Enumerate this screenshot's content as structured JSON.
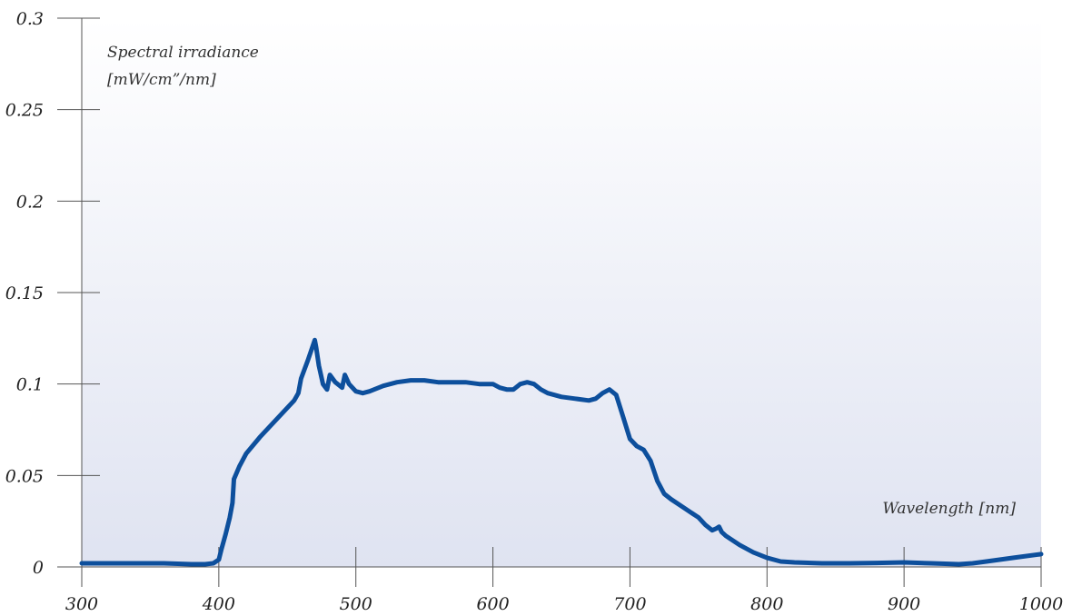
{
  "chart_data": {
    "type": "line",
    "title": "",
    "ylabel_line1": "Spectral irradiance",
    "ylabel_line2": "[mW/cm”/nm]",
    "xlabel": "Wavelength [nm]",
    "xlim": [
      300,
      1000
    ],
    "ylim": [
      0,
      0.3
    ],
    "x_ticks": [
      {
        "value": 300,
        "label": "300"
      },
      {
        "value": 400,
        "label": "400"
      },
      {
        "value": 500,
        "label": "500"
      },
      {
        "value": 600,
        "label": "600"
      },
      {
        "value": 700,
        "label": "700"
      },
      {
        "value": 800,
        "label": "800"
      },
      {
        "value": 900,
        "label": "900"
      },
      {
        "value": 1000,
        "label": "1000"
      }
    ],
    "y_ticks": [
      {
        "value": 0,
        "label": "0"
      },
      {
        "value": 0.05,
        "label": "0.05"
      },
      {
        "value": 0.1,
        "label": "0.1"
      },
      {
        "value": 0.15,
        "label": "0.15"
      },
      {
        "value": 0.2,
        "label": "0.2"
      },
      {
        "value": 0.25,
        "label": "0.25"
      },
      {
        "value": 0.3,
        "label": "0.3"
      }
    ],
    "grid": false,
    "colors": {
      "line": "#0d4f9c",
      "background_top": "#ffffff",
      "background_bottom": "#dfe3f1",
      "axis": "#555555"
    },
    "series": [
      {
        "x": [
          300,
          320,
          340,
          360,
          380,
          390,
          396,
          400,
          402,
          405,
          408,
          410,
          411,
          415,
          420,
          430,
          440,
          450,
          455,
          458,
          460,
          465,
          470,
          471,
          473,
          476,
          479,
          481,
          485,
          490,
          492,
          495,
          500,
          505,
          510,
          520,
          530,
          540,
          550,
          560,
          580,
          590,
          600,
          605,
          610,
          615,
          620,
          625,
          630,
          635,
          640,
          650,
          660,
          670,
          675,
          680,
          685,
          690,
          695,
          700,
          705,
          710,
          715,
          720,
          725,
          730,
          740,
          750,
          755,
          760,
          763,
          765,
          767,
          770,
          780,
          790,
          800,
          810,
          820,
          840,
          860,
          880,
          900,
          920,
          940,
          950,
          960,
          980,
          1000
        ],
        "y": [
          0.002,
          0.002,
          0.002,
          0.002,
          0.0015,
          0.0015,
          0.002,
          0.004,
          0.01,
          0.018,
          0.027,
          0.035,
          0.048,
          0.055,
          0.062,
          0.071,
          0.079,
          0.087,
          0.091,
          0.095,
          0.103,
          0.113,
          0.124,
          0.12,
          0.11,
          0.1,
          0.097,
          0.105,
          0.101,
          0.098,
          0.105,
          0.1,
          0.096,
          0.095,
          0.096,
          0.099,
          0.101,
          0.102,
          0.102,
          0.101,
          0.101,
          0.1,
          0.1,
          0.098,
          0.097,
          0.097,
          0.1,
          0.101,
          0.1,
          0.097,
          0.095,
          0.093,
          0.092,
          0.091,
          0.092,
          0.095,
          0.097,
          0.094,
          0.082,
          0.07,
          0.066,
          0.064,
          0.058,
          0.047,
          0.04,
          0.037,
          0.032,
          0.027,
          0.023,
          0.02,
          0.021,
          0.022,
          0.019,
          0.017,
          0.012,
          0.008,
          0.005,
          0.003,
          0.0025,
          0.002,
          0.002,
          0.0022,
          0.0025,
          0.002,
          0.0015,
          0.002,
          0.003,
          0.005,
          0.007
        ]
      }
    ]
  }
}
